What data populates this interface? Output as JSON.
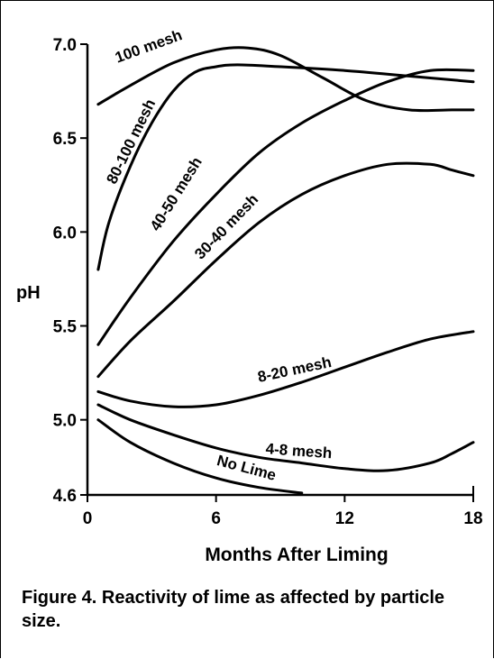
{
  "chart_data": {
    "type": "line",
    "title": "",
    "xlabel": "Months After Liming",
    "ylabel": "pH",
    "xlim": [
      0,
      18
    ],
    "ylim": [
      4.6,
      7.0
    ],
    "xticks": [
      0,
      6,
      12,
      18
    ],
    "xtick_labels": [
      "0",
      "6",
      "12",
      "18"
    ],
    "yticks": [
      4.6,
      5.0,
      5.5,
      6.0,
      6.5,
      7.0
    ],
    "ytick_labels": [
      "4.6",
      "5.0",
      "5.5",
      "6.0",
      "6.5",
      "7.0"
    ],
    "grid": false,
    "series": [
      {
        "name": "100 mesh",
        "x": [
          0.5,
          2,
          4,
          6,
          7.5,
          9,
          11,
          13,
          15,
          17,
          18
        ],
        "y": [
          6.68,
          6.78,
          6.9,
          6.97,
          6.98,
          6.94,
          6.82,
          6.7,
          6.65,
          6.65,
          6.65
        ]
      },
      {
        "name": "80-100 mesh",
        "x": [
          0.5,
          1,
          2,
          3,
          4,
          5,
          6,
          7,
          9,
          12,
          15,
          18
        ],
        "y": [
          5.8,
          6.05,
          6.35,
          6.58,
          6.75,
          6.85,
          6.88,
          6.89,
          6.88,
          6.86,
          6.83,
          6.8
        ]
      },
      {
        "name": "40-50 mesh",
        "x": [
          0.5,
          2,
          4,
          6,
          8,
          10,
          12,
          14,
          16,
          18
        ],
        "y": [
          5.4,
          5.65,
          5.95,
          6.2,
          6.42,
          6.58,
          6.7,
          6.8,
          6.86,
          6.86
        ]
      },
      {
        "name": "30-40 mesh",
        "x": [
          0.5,
          2,
          4,
          6,
          8,
          10,
          12,
          14,
          16,
          17,
          18
        ],
        "y": [
          5.23,
          5.42,
          5.63,
          5.85,
          6.05,
          6.2,
          6.3,
          6.36,
          6.36,
          6.33,
          6.3
        ]
      },
      {
        "name": "8-20 mesh",
        "x": [
          0.5,
          2,
          4,
          6,
          8,
          10,
          12,
          14,
          16,
          18
        ],
        "y": [
          5.15,
          5.1,
          5.07,
          5.08,
          5.13,
          5.2,
          5.28,
          5.36,
          5.43,
          5.47
        ]
      },
      {
        "name": "4-8 mesh",
        "x": [
          0.5,
          2,
          4,
          6,
          8,
          10,
          12,
          14,
          16,
          17,
          18
        ],
        "y": [
          5.08,
          5.0,
          4.92,
          4.85,
          4.8,
          4.77,
          4.74,
          4.73,
          4.77,
          4.82,
          4.88
        ]
      },
      {
        "name": "No Lime",
        "x": [
          0.5,
          2,
          4,
          6,
          8,
          10
        ],
        "y": [
          5.0,
          4.88,
          4.77,
          4.69,
          4.64,
          4.61
        ]
      }
    ],
    "annotations": [
      "100 mesh",
      "80-100 mesh",
      "40-50 mesh",
      "30-40 mesh",
      "8-20 mesh",
      "4-8 mesh",
      "No Lime"
    ],
    "caption": "Figure 4. Reactivity of lime as affected by particle size."
  }
}
